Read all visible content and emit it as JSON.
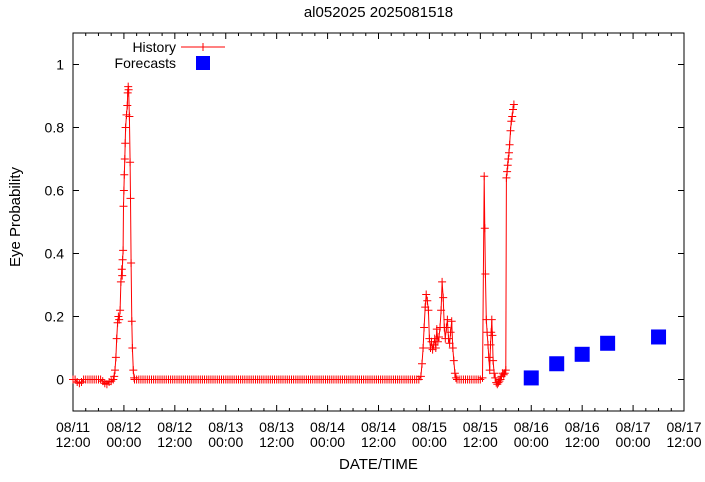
{
  "chart_data": {
    "type": "line",
    "title": "al052025 2025081518",
    "xlabel": "DATE/TIME",
    "ylabel": "Eye Probability",
    "x_range_hours": [
      0,
      144
    ],
    "y_range": [
      -0.1,
      1.1
    ],
    "x_axis_epoch_label": "hours since 08/11 12:00",
    "x_minor_tick_step_hours": 3,
    "x_ticks": [
      {
        "hours": 0,
        "date": "08/11",
        "time": "12:00"
      },
      {
        "hours": 12,
        "date": "08/12",
        "time": "00:00"
      },
      {
        "hours": 24,
        "date": "08/12",
        "time": "12:00"
      },
      {
        "hours": 36,
        "date": "08/13",
        "time": "00:00"
      },
      {
        "hours": 48,
        "date": "08/13",
        "time": "12:00"
      },
      {
        "hours": 60,
        "date": "08/14",
        "time": "00:00"
      },
      {
        "hours": 72,
        "date": "08/14",
        "time": "12:00"
      },
      {
        "hours": 84,
        "date": "08/15",
        "time": "00:00"
      },
      {
        "hours": 96,
        "date": "08/15",
        "time": "12:00"
      },
      {
        "hours": 108,
        "date": "08/16",
        "time": "00:00"
      },
      {
        "hours": 120,
        "date": "08/16",
        "time": "12:00"
      },
      {
        "hours": 132,
        "date": "08/17",
        "time": "00:00"
      },
      {
        "hours": 144,
        "date": "08/17",
        "time": "12:00"
      }
    ],
    "y_ticks": [
      {
        "v": 0,
        "label": "0"
      },
      {
        "v": 0.2,
        "label": "0.2"
      },
      {
        "v": 0.4,
        "label": "0.4"
      },
      {
        "v": 0.6,
        "label": "0.6"
      },
      {
        "v": 0.8,
        "label": "0.8"
      },
      {
        "v": 1,
        "label": "1"
      }
    ],
    "legend_position": "top-left",
    "series": [
      {
        "name": "History",
        "color": "#ff0000",
        "style": "linespoints",
        "marker": "plus",
        "baseline_runs": [
          {
            "from_h": 0,
            "to_h": 9,
            "value": 0,
            "step_h": 0.5
          },
          {
            "from_h": 14.5,
            "to_h": 82,
            "value": 0,
            "step_h": 0.5
          },
          {
            "from_h": 90.5,
            "to_h": 96,
            "value": 0,
            "step_h": 0.5
          }
        ],
        "points": [
          [
            1,
            -0.008
          ],
          [
            1.5,
            -0.012
          ],
          [
            2,
            -0.008
          ],
          [
            7,
            -0.005
          ],
          [
            7.5,
            -0.012
          ],
          [
            8,
            -0.015
          ],
          [
            8.5,
            -0.008
          ],
          [
            9,
            -0.005
          ],
          [
            9.5,
            0
          ],
          [
            9.7,
            0.01
          ],
          [
            9.9,
            0.03
          ],
          [
            10.1,
            0.07
          ],
          [
            10.3,
            0.13
          ],
          [
            10.5,
            0.18
          ],
          [
            10.7,
            0.2
          ],
          [
            10.9,
            0.19
          ],
          [
            11.1,
            0.22
          ],
          [
            11.3,
            0.31
          ],
          [
            11.5,
            0.35
          ],
          [
            11.6,
            0.33
          ],
          [
            11.7,
            0.38
          ],
          [
            11.8,
            0.41
          ],
          [
            11.9,
            0.55
          ],
          [
            12,
            0.6
          ],
          [
            12.1,
            0.65
          ],
          [
            12.2,
            0.7
          ],
          [
            12.3,
            0.75
          ],
          [
            12.4,
            0.8
          ],
          [
            12.6,
            0.84
          ],
          [
            12.8,
            0.87
          ],
          [
            12.9,
            0.91
          ],
          [
            13,
            0.93
          ],
          [
            13.1,
            0.92
          ],
          [
            13.3,
            0.835
          ],
          [
            13.45,
            0.69
          ],
          [
            13.55,
            0.575
          ],
          [
            13.7,
            0.37
          ],
          [
            13.85,
            0.185
          ],
          [
            14,
            0.1
          ],
          [
            14.2,
            0.03
          ],
          [
            14.4,
            0.005
          ],
          [
            82,
            0.01
          ],
          [
            82.25,
            0.05
          ],
          [
            82.5,
            0.1
          ],
          [
            82.75,
            0.165
          ],
          [
            83,
            0.23
          ],
          [
            83.25,
            0.27
          ],
          [
            83.5,
            0.25
          ],
          [
            83.75,
            0.22
          ],
          [
            84,
            0.13
          ],
          [
            84.25,
            0.1
          ],
          [
            84.5,
            0.12
          ],
          [
            84.75,
            0.095
          ],
          [
            85,
            0.11
          ],
          [
            85.25,
            0.13
          ],
          [
            85.5,
            0.1
          ],
          [
            85.75,
            0.16
          ],
          [
            86,
            0.12
          ],
          [
            86.25,
            0.135
          ],
          [
            86.5,
            0.165
          ],
          [
            86.75,
            0.22
          ],
          [
            87,
            0.31
          ],
          [
            87.25,
            0.26
          ],
          [
            87.5,
            0.165
          ],
          [
            87.75,
            0.13
          ],
          [
            88,
            0.165
          ],
          [
            88.25,
            0.19
          ],
          [
            88.5,
            0.13
          ],
          [
            88.75,
            0.115
          ],
          [
            89,
            0.15
          ],
          [
            89.25,
            0.185
          ],
          [
            89.5,
            0.1
          ],
          [
            89.75,
            0.06
          ],
          [
            90,
            0.02
          ],
          [
            90.25,
            0.005
          ],
          [
            96.5,
            0.005
          ],
          [
            96.9,
            0.645
          ],
          [
            97.05,
            0.48
          ],
          [
            97.2,
            0.335
          ],
          [
            97.4,
            0.19
          ],
          [
            97.6,
            0.15
          ],
          [
            97.8,
            0.11
          ],
          [
            98,
            0.07
          ],
          [
            98.2,
            0.03
          ],
          [
            98.4,
            0.11
          ],
          [
            98.55,
            0.15
          ],
          [
            98.7,
            0.19
          ],
          [
            98.85,
            0.14
          ],
          [
            99,
            0.06
          ],
          [
            99.25,
            0.02
          ],
          [
            99.5,
            0.005
          ],
          [
            99.75,
            -0.01
          ],
          [
            100,
            -0.015
          ],
          [
            100.25,
            -0.01
          ],
          [
            100.5,
            -0.005
          ],
          [
            100.75,
            0
          ],
          [
            101,
            0.01
          ],
          [
            101.25,
            0.02
          ],
          [
            101.5,
            0.015
          ],
          [
            101.75,
            0.02
          ],
          [
            102,
            0.03
          ],
          [
            102.15,
            0.64
          ],
          [
            102.3,
            0.66
          ],
          [
            102.45,
            0.68
          ],
          [
            102.6,
            0.7
          ],
          [
            102.75,
            0.72
          ],
          [
            102.9,
            0.745
          ],
          [
            103.1,
            0.79
          ],
          [
            103.3,
            0.82
          ],
          [
            103.5,
            0.835
          ],
          [
            103.7,
            0.857
          ],
          [
            103.9,
            0.873
          ]
        ]
      },
      {
        "name": "Forecasts",
        "color": "#0000ff",
        "style": "points",
        "marker": "filled-square",
        "points": [
          [
            108,
            0.005
          ],
          [
            114,
            0.05
          ],
          [
            120,
            0.08
          ],
          [
            126,
            0.115
          ],
          [
            138,
            0.135
          ]
        ]
      }
    ]
  }
}
